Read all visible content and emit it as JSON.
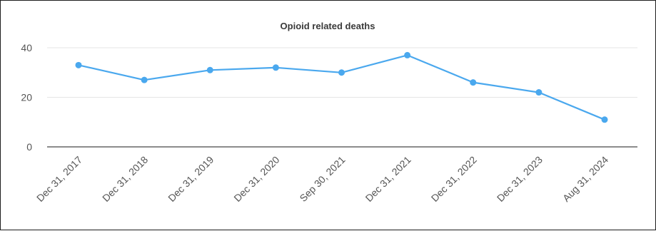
{
  "chart_data": {
    "type": "line",
    "title": "Opioid related deaths",
    "xlabel": "",
    "ylabel": "",
    "categories": [
      "Dec 31, 2017",
      "Dec 31, 2018",
      "Dec 31, 2019",
      "Dec 31, 2020",
      "Sep 30, 2021",
      "Dec 31, 2021",
      "Dec 31, 2022",
      "Dec 31, 2023",
      "Aug 31, 2024"
    ],
    "series": [
      {
        "values": [
          33,
          27,
          31,
          32,
          30,
          37,
          26,
          22,
          11
        ]
      }
    ],
    "yticks": [
      0,
      20,
      40
    ],
    "ylim": [
      0,
      40
    ],
    "grid": true,
    "legend": "none",
    "colors": {
      "line": "#4aa8ee",
      "grid": "#e6e6e6",
      "baseline": "#8c8c8c"
    }
  }
}
